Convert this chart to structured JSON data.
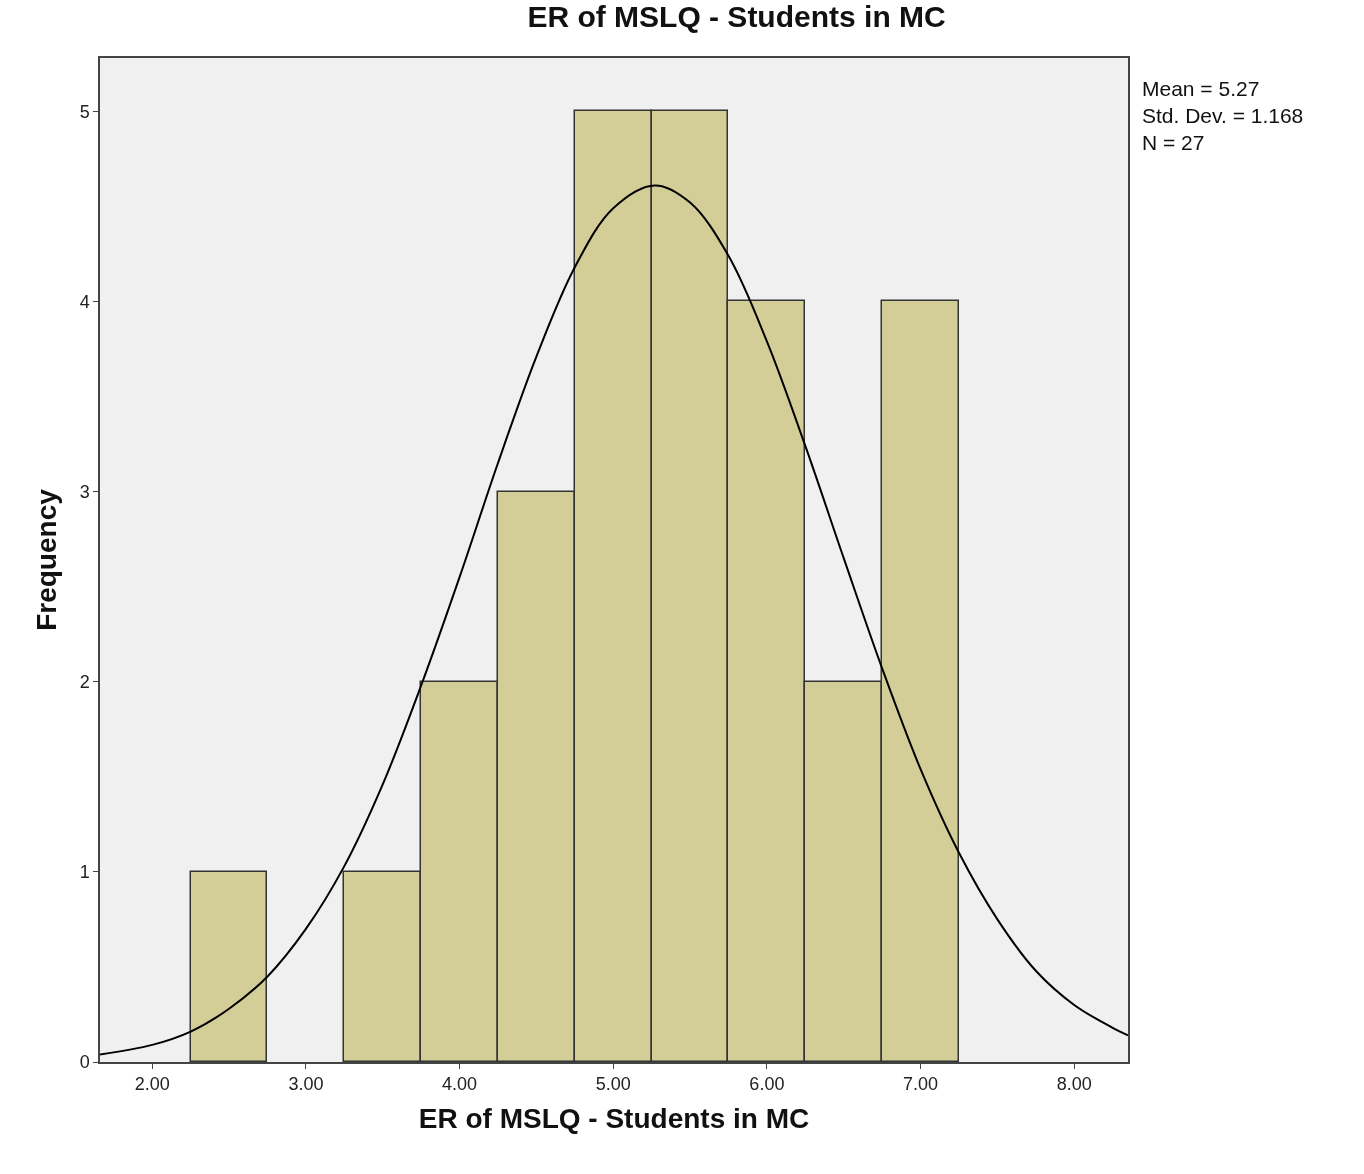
{
  "chart_data": {
    "type": "histogram",
    "title": "ER of MSLQ - Students in MC",
    "xlabel": "ER of MSLQ - Students in MC",
    "ylabel": "Frequency",
    "bins": [
      2.25,
      2.75,
      3.25,
      3.75,
      4.25,
      4.75,
      5.25,
      5.75,
      6.25,
      6.75,
      7.25
    ],
    "values": [
      1,
      0,
      1,
      2,
      3,
      5,
      5,
      4,
      2,
      4
    ],
    "color": "#d3ce98",
    "series": [
      {
        "type": "line",
        "color": "#000000",
        "x": [
          1.66,
          2.0,
          2.25,
          2.5,
          2.75,
          3.0,
          3.25,
          3.5,
          3.75,
          4.0,
          4.25,
          4.5,
          4.75,
          5.0,
          5.27,
          5.5,
          5.75,
          6.0,
          6.25,
          6.5,
          6.75,
          7.0,
          7.25,
          7.5,
          7.75,
          8.0,
          8.25,
          8.35
        ],
        "values": [
          0.04,
          0.09,
          0.16,
          0.28,
          0.45,
          0.7,
          1.03,
          1.46,
          1.98,
          2.55,
          3.15,
          3.71,
          4.18,
          4.49,
          4.61,
          4.52,
          4.24,
          3.79,
          3.24,
          2.65,
          2.07,
          1.54,
          1.1,
          0.75,
          0.48,
          0.3,
          0.18,
          0.14
        ]
      }
    ],
    "xlim": [
      1.66,
      8.35
    ],
    "xticks": [
      {
        "value": 2,
        "label": "2.00"
      },
      {
        "value": 3,
        "label": "3.00"
      },
      {
        "value": 4,
        "label": "4.00"
      },
      {
        "value": 5,
        "label": "5.00"
      },
      {
        "value": 6,
        "label": "6.00"
      },
      {
        "value": 7,
        "label": "7.00"
      },
      {
        "value": 8,
        "label": "8.00"
      }
    ],
    "ylim": [
      0,
      5.28
    ],
    "yticks": [
      0,
      1,
      2,
      3,
      4,
      5
    ],
    "annotations": [
      "Mean = 5.27",
      "Std. Dev. = 1.168",
      "N = 27"
    ],
    "grid": false
  }
}
